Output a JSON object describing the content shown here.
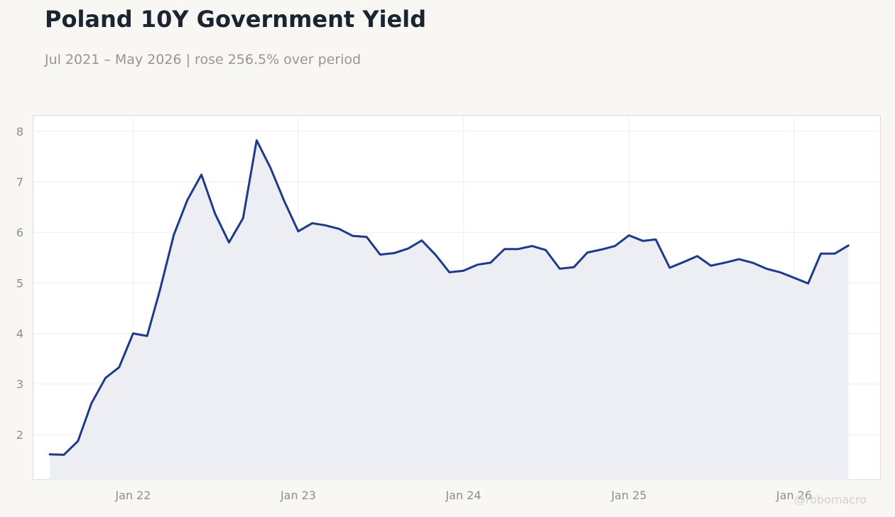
{
  "header": {
    "title": "Poland 10Y Government Yield",
    "subtitle": "Jul 2021 – May 2026 | rose 256.5% over period"
  },
  "watermark": "@robomacro",
  "colors": {
    "background": "#f8f7f4",
    "plot_background": "#ffffff",
    "line": "#1f3a8a",
    "area_fill": "#eceef4",
    "grid": "#eeeeee",
    "tick_text": "#8f8d88",
    "title": "#1b2433",
    "subtitle": "#999690"
  },
  "chart_data": {
    "type": "area",
    "title": "Poland 10Y Government Yield",
    "subtitle": "Jul 2021 – May 2026 | rose 256.5% over period",
    "xlabel": "",
    "ylabel": "",
    "grid": true,
    "x_range": [
      "2021-05-24",
      "2026-07-10"
    ],
    "ylim": [
      1.1,
      8.32
    ],
    "x_ticks": [
      {
        "date": "2022-01-01",
        "label": "Jan 22"
      },
      {
        "date": "2023-01-01",
        "label": "Jan 23"
      },
      {
        "date": "2024-01-01",
        "label": "Jan 24"
      },
      {
        "date": "2025-01-01",
        "label": "Jan 25"
      },
      {
        "date": "2026-01-01",
        "label": "Jan 26"
      }
    ],
    "y_ticks": [
      2,
      3,
      4,
      5,
      6,
      7,
      8
    ],
    "series": [
      {
        "x": [
          "2021-07-01",
          "2021-08-01",
          "2021-09-01",
          "2021-10-01",
          "2021-11-01",
          "2021-12-01",
          "2022-01-01",
          "2022-02-01",
          "2022-03-01",
          "2022-04-01",
          "2022-05-01",
          "2022-06-01",
          "2022-07-01",
          "2022-08-01",
          "2022-09-01",
          "2022-10-01",
          "2022-11-01",
          "2022-12-01",
          "2023-01-01",
          "2023-02-01",
          "2023-03-01",
          "2023-04-01",
          "2023-05-01",
          "2023-06-01",
          "2023-07-01",
          "2023-08-01",
          "2023-09-01",
          "2023-10-01",
          "2023-11-01",
          "2023-12-01",
          "2024-01-01",
          "2024-02-01",
          "2024-03-01",
          "2024-04-01",
          "2024-05-01",
          "2024-06-01",
          "2024-07-01",
          "2024-08-01",
          "2024-09-01",
          "2024-10-01",
          "2024-11-01",
          "2024-12-01",
          "2025-01-01",
          "2025-02-01",
          "2025-03-01",
          "2025-04-01",
          "2025-05-01",
          "2025-06-01",
          "2025-07-01",
          "2025-08-01",
          "2025-09-01",
          "2025-10-01",
          "2025-11-01",
          "2025-12-01",
          "2026-01-01",
          "2026-02-01",
          "2026-03-01",
          "2026-04-01",
          "2026-05-01"
        ],
        "values": [
          1.61,
          1.6,
          1.87,
          2.62,
          3.12,
          3.33,
          4.0,
          3.95,
          4.85,
          5.95,
          6.64,
          7.14,
          6.37,
          5.8,
          6.28,
          7.82,
          7.27,
          6.62,
          6.02,
          6.18,
          6.14,
          6.07,
          5.93,
          5.91,
          5.56,
          5.59,
          5.68,
          5.84,
          5.55,
          5.21,
          5.24,
          5.36,
          5.4,
          5.67,
          5.67,
          5.73,
          5.65,
          5.28,
          5.31,
          5.6,
          5.66,
          5.73,
          5.94,
          5.83,
          5.86,
          5.3,
          5.41,
          5.53,
          5.34,
          5.4,
          5.47,
          5.4,
          5.28,
          5.21,
          5.1,
          4.99,
          5.58,
          5.58,
          5.74
        ]
      }
    ]
  }
}
